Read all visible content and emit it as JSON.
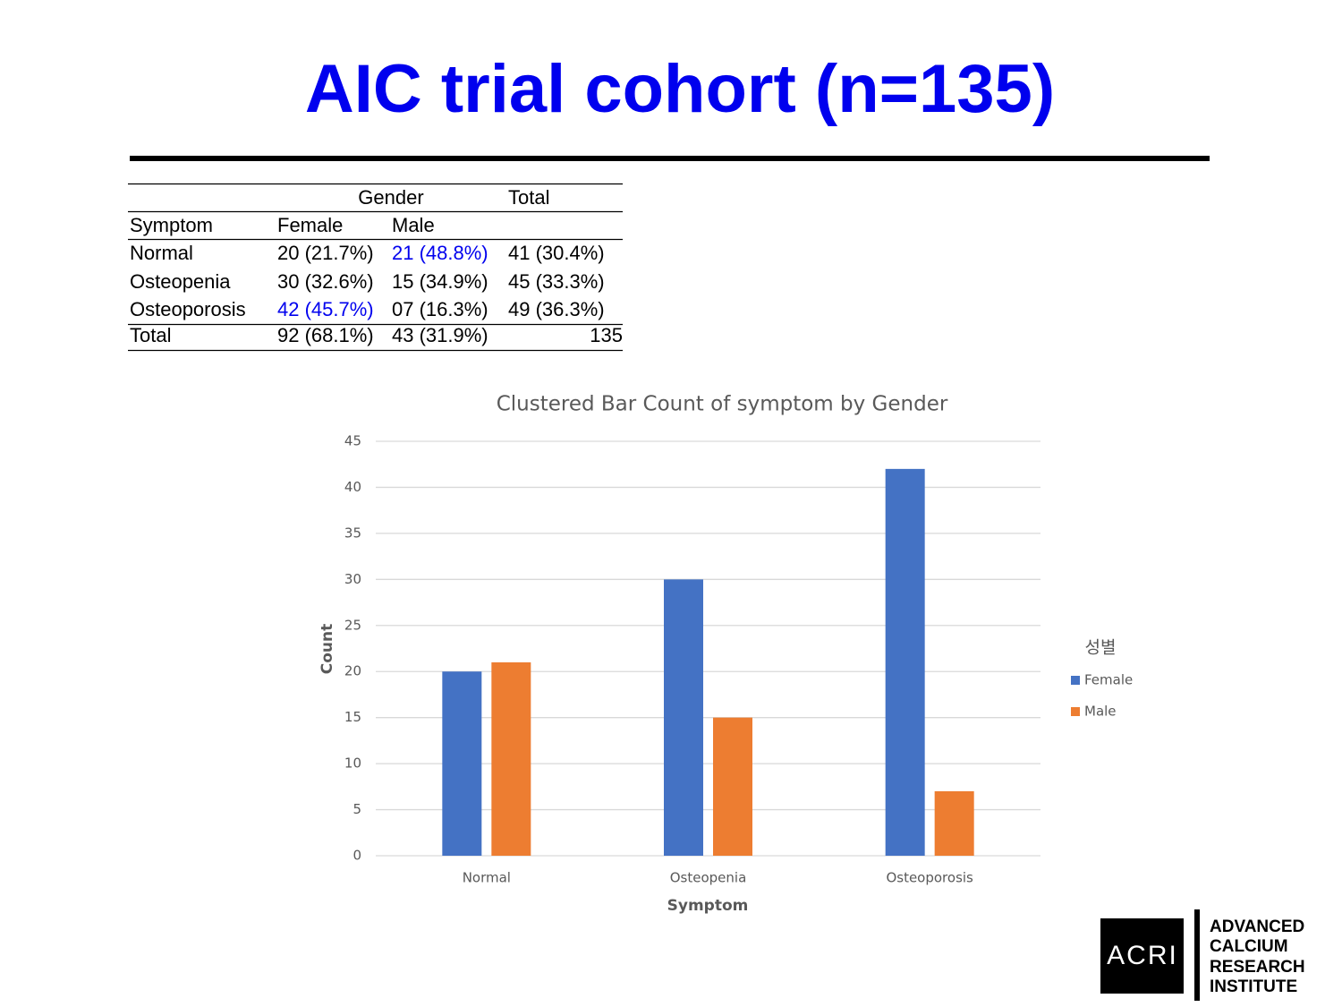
{
  "title": "AIC trial cohort (n=135)",
  "table": {
    "group_headers": [
      "Gender",
      "Total"
    ],
    "column_headers": [
      "Symptom",
      "Female",
      "Male"
    ],
    "rows": [
      [
        "Normal",
        "20 (21.7%)",
        "21 (48.8%)",
        "41 (30.4%)"
      ],
      [
        "Osteopenia",
        "30 (32.6%)",
        "15 (34.9%)",
        "45 (33.3%)"
      ],
      [
        "Osteoporosis",
        "42 (45.7%)",
        "07 (16.3%)",
        "49 (36.3%)"
      ]
    ],
    "total_row": [
      "Total",
      "92 (68.1%)",
      "43 (31.9%)",
      "135"
    ]
  },
  "chart_data": {
    "type": "bar",
    "title": "Clustered Bar Count of symptom by Gender",
    "x_label": "Symptom",
    "y_label": "Count",
    "categories": [
      "Normal",
      "Osteopenia",
      "Osteoporosis"
    ],
    "series": [
      {
        "name": "Female",
        "color": "#4472c4",
        "values": [
          20,
          30,
          42
        ]
      },
      {
        "name": "Male",
        "color": "#ed7d31",
        "values": [
          21,
          15,
          7
        ]
      }
    ],
    "ylim": [
      0,
      45
    ],
    "yticks": [
      0,
      5,
      10,
      15,
      20,
      25,
      30,
      35,
      40,
      45
    ],
    "grid": true,
    "legend_title": "성별",
    "legend": "right"
  },
  "logo": {
    "mark": "ACRI",
    "lines": [
      "ADVANCED",
      "CALCIUM",
      "RESEARCH",
      "INSTITUTE"
    ]
  }
}
